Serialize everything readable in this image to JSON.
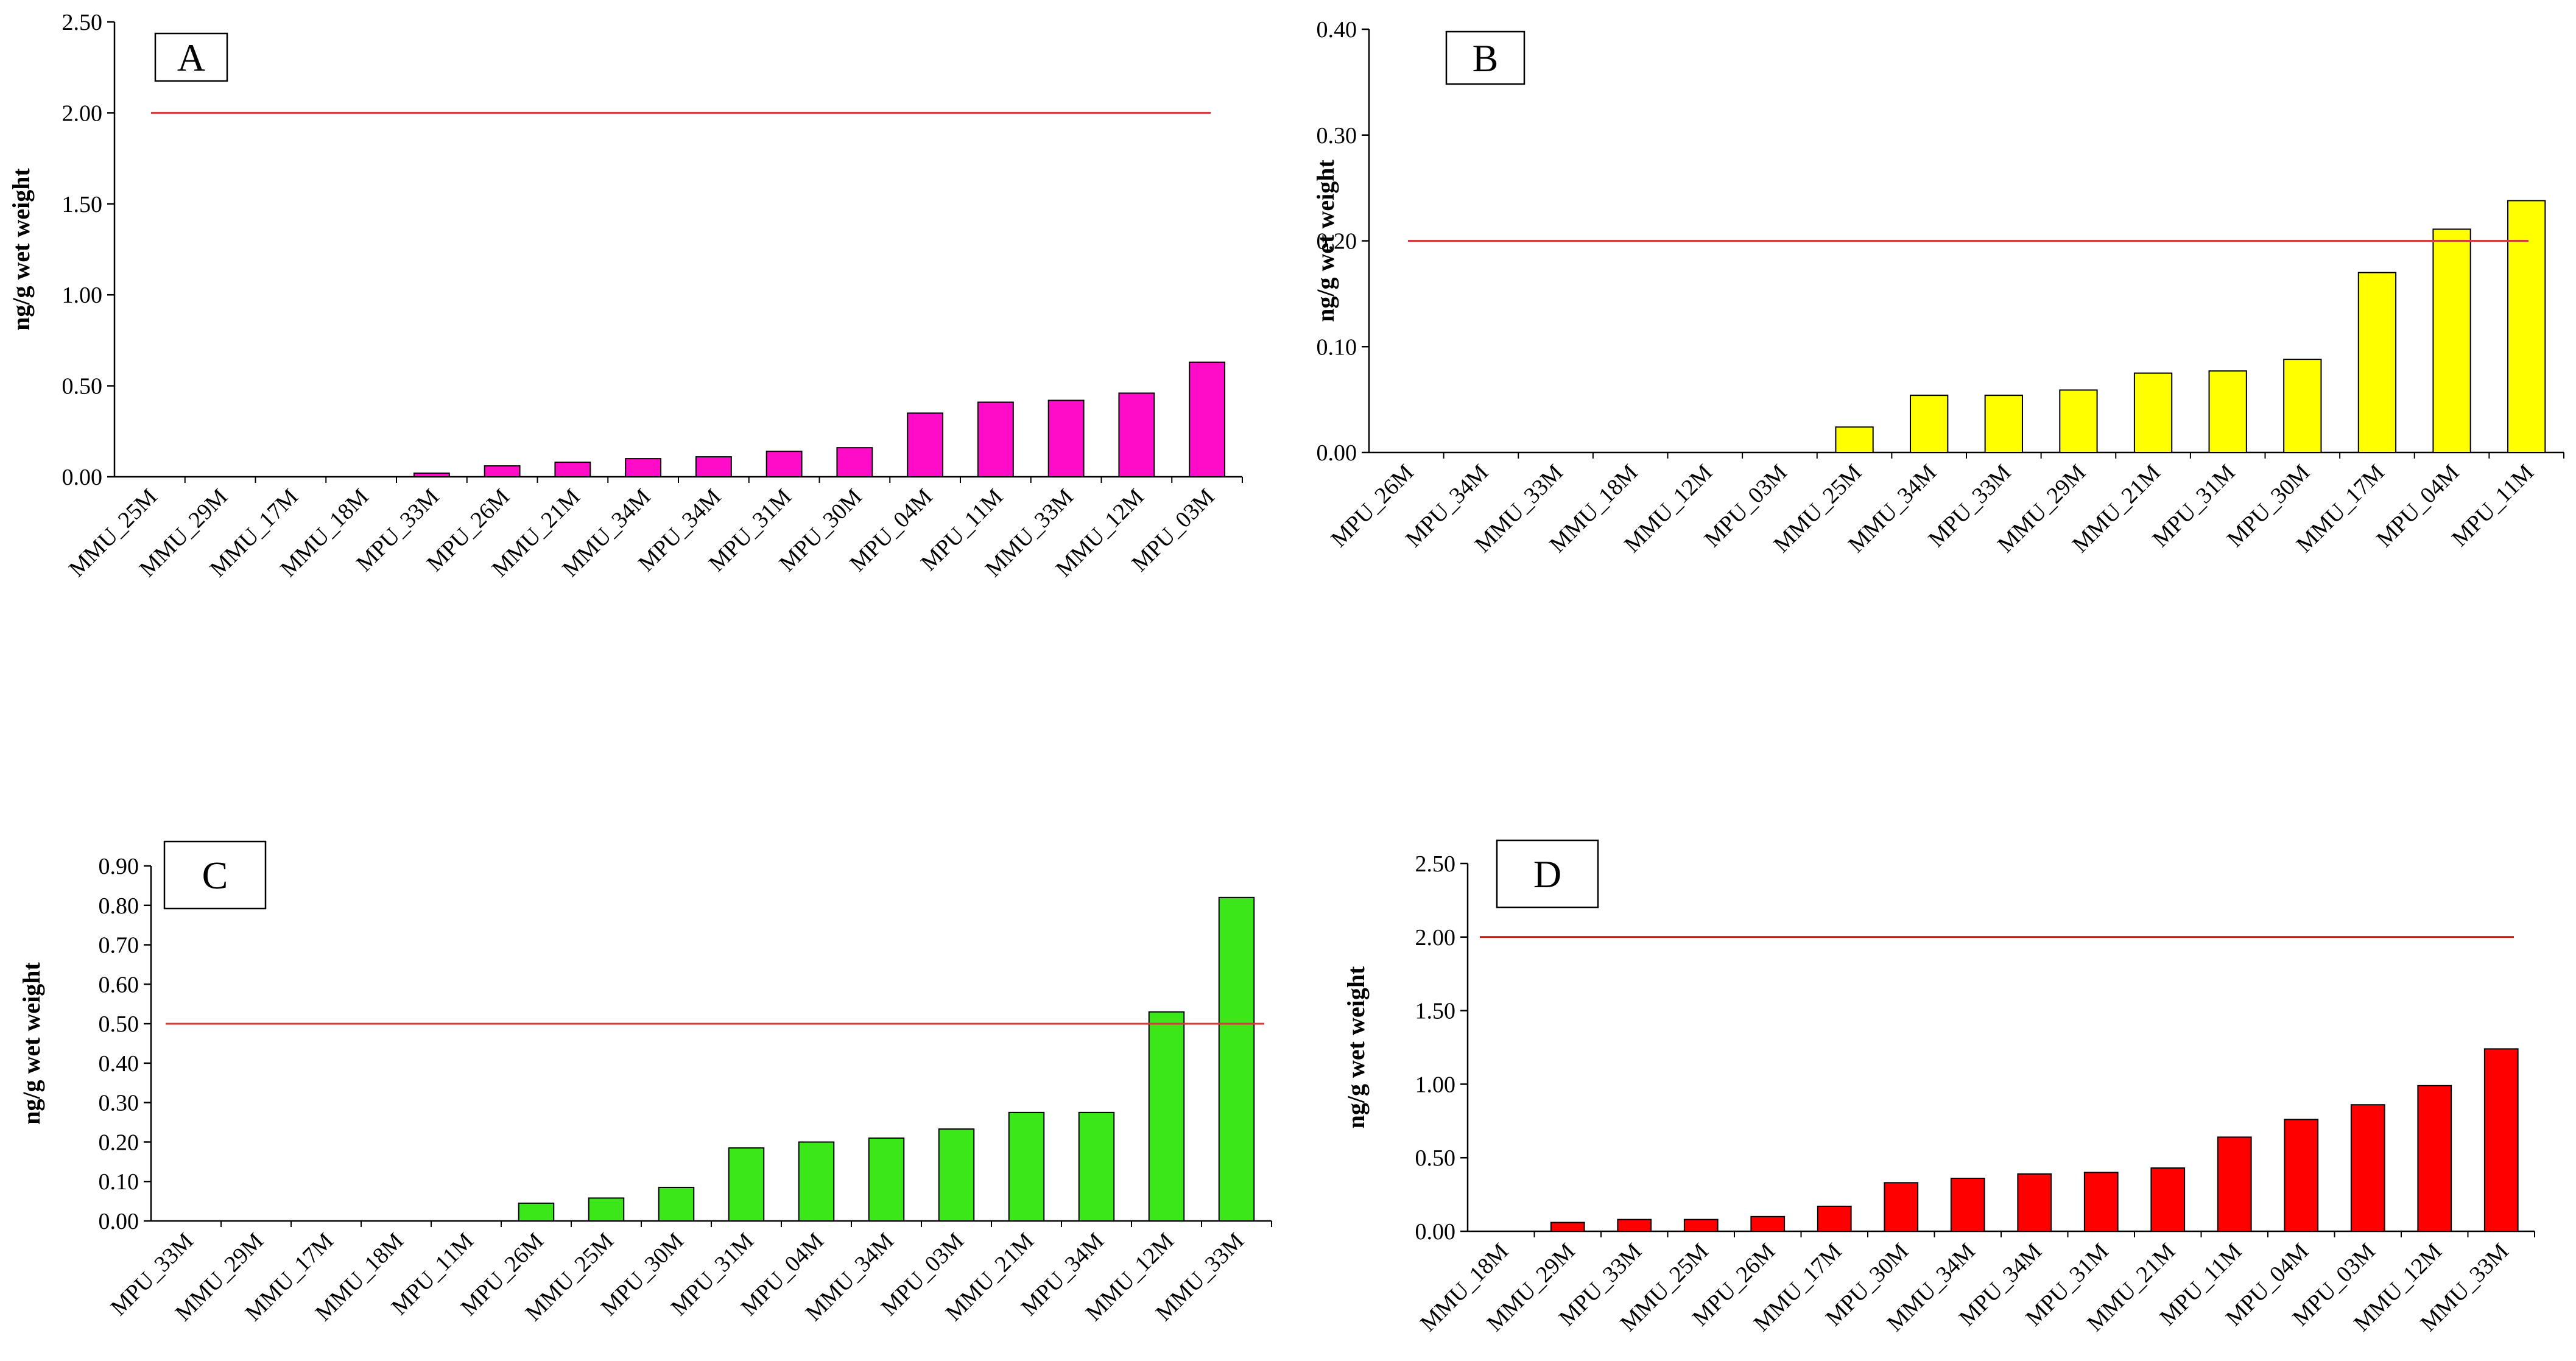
{
  "chart_data": [
    {
      "type": "bar",
      "panel_label": "A",
      "ylabel": "ng/g wet weight",
      "ylim": [
        0,
        2.5
      ],
      "yticks": [
        "0.00",
        "0.50",
        "1.00",
        "1.50",
        "2.00",
        "2.50"
      ],
      "categories": [
        "MMU_25M",
        "MMU_29M",
        "MMU_17M",
        "MMU_18M",
        "MPU_33M",
        "MPU_26M",
        "MMU_21M",
        "MMU_34M",
        "MPU_34M",
        "MPU_31M",
        "MPU_30M",
        "MPU_04M",
        "MPU_11M",
        "MMU_33M",
        "MMU_12M",
        "MPU_03M"
      ],
      "values": [
        0,
        0,
        0,
        0,
        0.02,
        0.06,
        0.08,
        0.1,
        0.11,
        0.14,
        0.16,
        0.35,
        0.41,
        0.42,
        0.46,
        0.63
      ],
      "bar_color": "#ff0cc8",
      "reference_line": 2.0,
      "reference_color": "#d23c3c"
    },
    {
      "type": "bar",
      "panel_label": "B",
      "ylabel": "ng/g wet weight",
      "ylim": [
        0,
        0.4
      ],
      "yticks": [
        "0.00",
        "0.10",
        "0.20",
        "0.30",
        "0.40"
      ],
      "categories": [
        "MPU_26M",
        "MPU_34M",
        "MMU_33M",
        "MMU_18M",
        "MMU_12M",
        "MPU_03M",
        "MMU_25M",
        "MMU_34M",
        "MPU_33M",
        "MMU_29M",
        "MMU_21M",
        "MPU_31M",
        "MPU_30M",
        "MMU_17M",
        "MPU_04M",
        "MPU_11M"
      ],
      "values": [
        0,
        0,
        0,
        0,
        0,
        0,
        0.024,
        0.054,
        0.054,
        0.059,
        0.075,
        0.077,
        0.088,
        0.17,
        0.211,
        0.238
      ],
      "bar_color": "#ffff00",
      "reference_line": 0.2,
      "reference_color": "#d23c3c"
    },
    {
      "type": "bar",
      "panel_label": "C",
      "ylabel": "ng/g wet weight",
      "ylim": [
        0,
        0.9
      ],
      "yticks": [
        "0.00",
        "0.10",
        "0.20",
        "0.30",
        "0.40",
        "0.50",
        "0.60",
        "0.70",
        "0.80",
        "0.90"
      ],
      "categories": [
        "MPU_33M",
        "MMU_29M",
        "MMU_17M",
        "MMU_18M",
        "MPU_11M",
        "MPU_26M",
        "MMU_25M",
        "MPU_30M",
        "MPU_31M",
        "MPU_04M",
        "MMU_34M",
        "MPU_03M",
        "MMU_21M",
        "MPU_34M",
        "MMU_12M",
        "MMU_33M"
      ],
      "values": [
        0,
        0,
        0,
        0,
        0,
        0.045,
        0.058,
        0.085,
        0.185,
        0.2,
        0.21,
        0.233,
        0.275,
        0.275,
        0.53,
        0.82
      ],
      "bar_color": "#3be619",
      "reference_line": 0.5,
      "reference_color": "#d23c3c"
    },
    {
      "type": "bar",
      "panel_label": "D",
      "ylabel": "ng/g wet weight",
      "ylim": [
        0,
        2.5
      ],
      "yticks": [
        "0.00",
        "0.50",
        "1.00",
        "1.50",
        "2.00",
        "2.50"
      ],
      "categories": [
        "MMU_18M",
        "MMU_29M",
        "MPU_33M",
        "MMU_25M",
        "MPU_26M",
        "MMU_17M",
        "MPU_30M",
        "MMU_34M",
        "MPU_34M",
        "MPU_31M",
        "MMU_21M",
        "MPU_11M",
        "MPU_04M",
        "MPU_03M",
        "MMU_12M",
        "MMU_33M"
      ],
      "values": [
        0,
        0.06,
        0.08,
        0.08,
        0.1,
        0.17,
        0.33,
        0.36,
        0.39,
        0.4,
        0.43,
        0.64,
        0.76,
        0.86,
        0.99,
        1.24
      ],
      "bar_color": "#ff0000",
      "reference_line": 2.0,
      "reference_color": "#cc1010"
    }
  ]
}
